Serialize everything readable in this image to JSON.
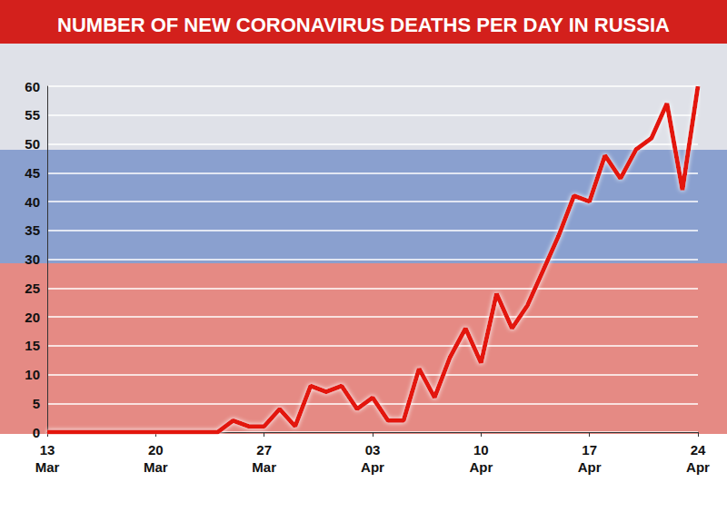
{
  "chart_data": {
    "type": "line",
    "title": "NUMBER OF NEW CORONAVIRUS DEATHS PER DAY IN RUSSIA",
    "categories": [
      "13 Mar",
      null,
      null,
      null,
      null,
      null,
      null,
      "20 Mar",
      null,
      null,
      null,
      null,
      null,
      null,
      "27 Mar",
      null,
      null,
      null,
      null,
      null,
      null,
      "03 Apr",
      null,
      null,
      null,
      null,
      null,
      null,
      "10 Apr",
      null,
      null,
      null,
      null,
      null,
      null,
      "17 Apr",
      null,
      null,
      null,
      null,
      null,
      null,
      "24 Apr"
    ],
    "values": [
      0,
      0,
      0,
      0,
      0,
      0,
      0,
      0,
      0,
      0,
      0,
      0,
      2,
      1,
      1,
      4,
      1,
      8,
      7,
      8,
      4,
      6,
      2,
      2,
      11,
      6,
      13,
      18,
      12,
      24,
      18,
      22,
      28,
      34,
      41,
      40,
      48,
      44,
      49,
      51,
      57,
      42,
      60
    ],
    "color": "#e3120b",
    "marker": "none",
    "ylim": [
      0,
      60
    ],
    "yticks": [
      0,
      5,
      10,
      15,
      20,
      25,
      30,
      35,
      40,
      45,
      50,
      55,
      60
    ],
    "grid": true
  }
}
